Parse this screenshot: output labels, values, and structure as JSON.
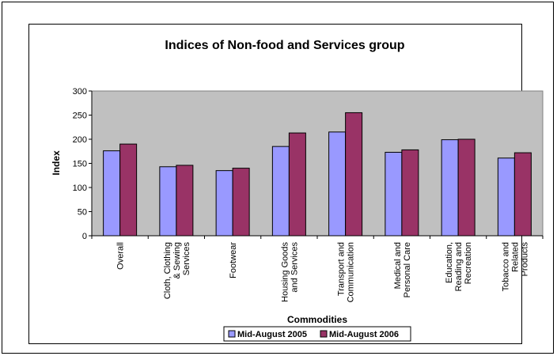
{
  "chart_data": {
    "type": "bar",
    "title": "Indices of Non-food and Services group",
    "xlabel": "Commodities",
    "ylabel": "Index",
    "ylim": [
      0,
      300
    ],
    "yticks": [
      0,
      50,
      100,
      150,
      200,
      250,
      300
    ],
    "grid": false,
    "legend": "bottom",
    "plot_background": "#c0c0c0",
    "categories": [
      "Overall",
      "Cloth, Clothing & Sewing Services",
      "Footwear",
      "Housing Goods and Services",
      "Transport and Communication",
      "Medical and Personal Care",
      "Education, Reading and Recreation",
      "Tobacco and Related Products"
    ],
    "category_lines": [
      [
        "Overall"
      ],
      [
        "Cloth, Clothing",
        "& Sewing",
        "Services"
      ],
      [
        "Footwear"
      ],
      [
        "Housing Goods",
        "and Services"
      ],
      [
        "Transport and",
        "Communication"
      ],
      [
        "Medical and",
        "Personal Care"
      ],
      [
        "Education,",
        "Reading and",
        "Recreation"
      ],
      [
        "Tobacco and",
        "Related",
        "Products"
      ]
    ],
    "series": [
      {
        "name": "Mid-August 2005",
        "color": "#9999ff",
        "values": [
          176,
          143,
          135,
          185,
          215,
          173,
          199,
          161
        ]
      },
      {
        "name": "Mid-August 2006",
        "color": "#993366",
        "values": [
          190,
          146,
          140,
          213,
          255,
          178,
          200,
          172
        ]
      }
    ]
  }
}
